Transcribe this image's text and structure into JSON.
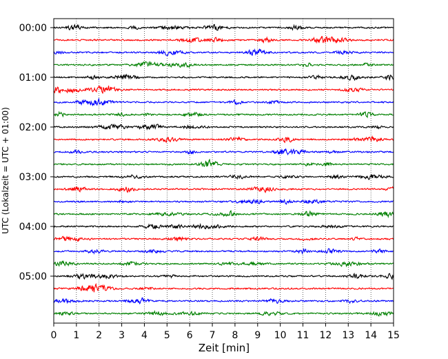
{
  "chart_data": {
    "type": "line",
    "title": "",
    "xlabel": "Zeit  [min]",
    "ylabel": "UTC (Lokalzeit = UTC + 01:00)",
    "xlim": [
      0,
      15
    ],
    "x_ticks": [
      0,
      1,
      2,
      3,
      4,
      5,
      6,
      7,
      8,
      9,
      10,
      11,
      12,
      13,
      14,
      15
    ],
    "y_ticks": [
      "00:00",
      "01:00",
      "02:00",
      "03:00",
      "04:00",
      "05:00"
    ],
    "grid": "vertical-dotted",
    "trace_count": 24,
    "trace_colors": [
      "#000000",
      "#ff0000",
      "#0000ff",
      "#008000"
    ]
  }
}
